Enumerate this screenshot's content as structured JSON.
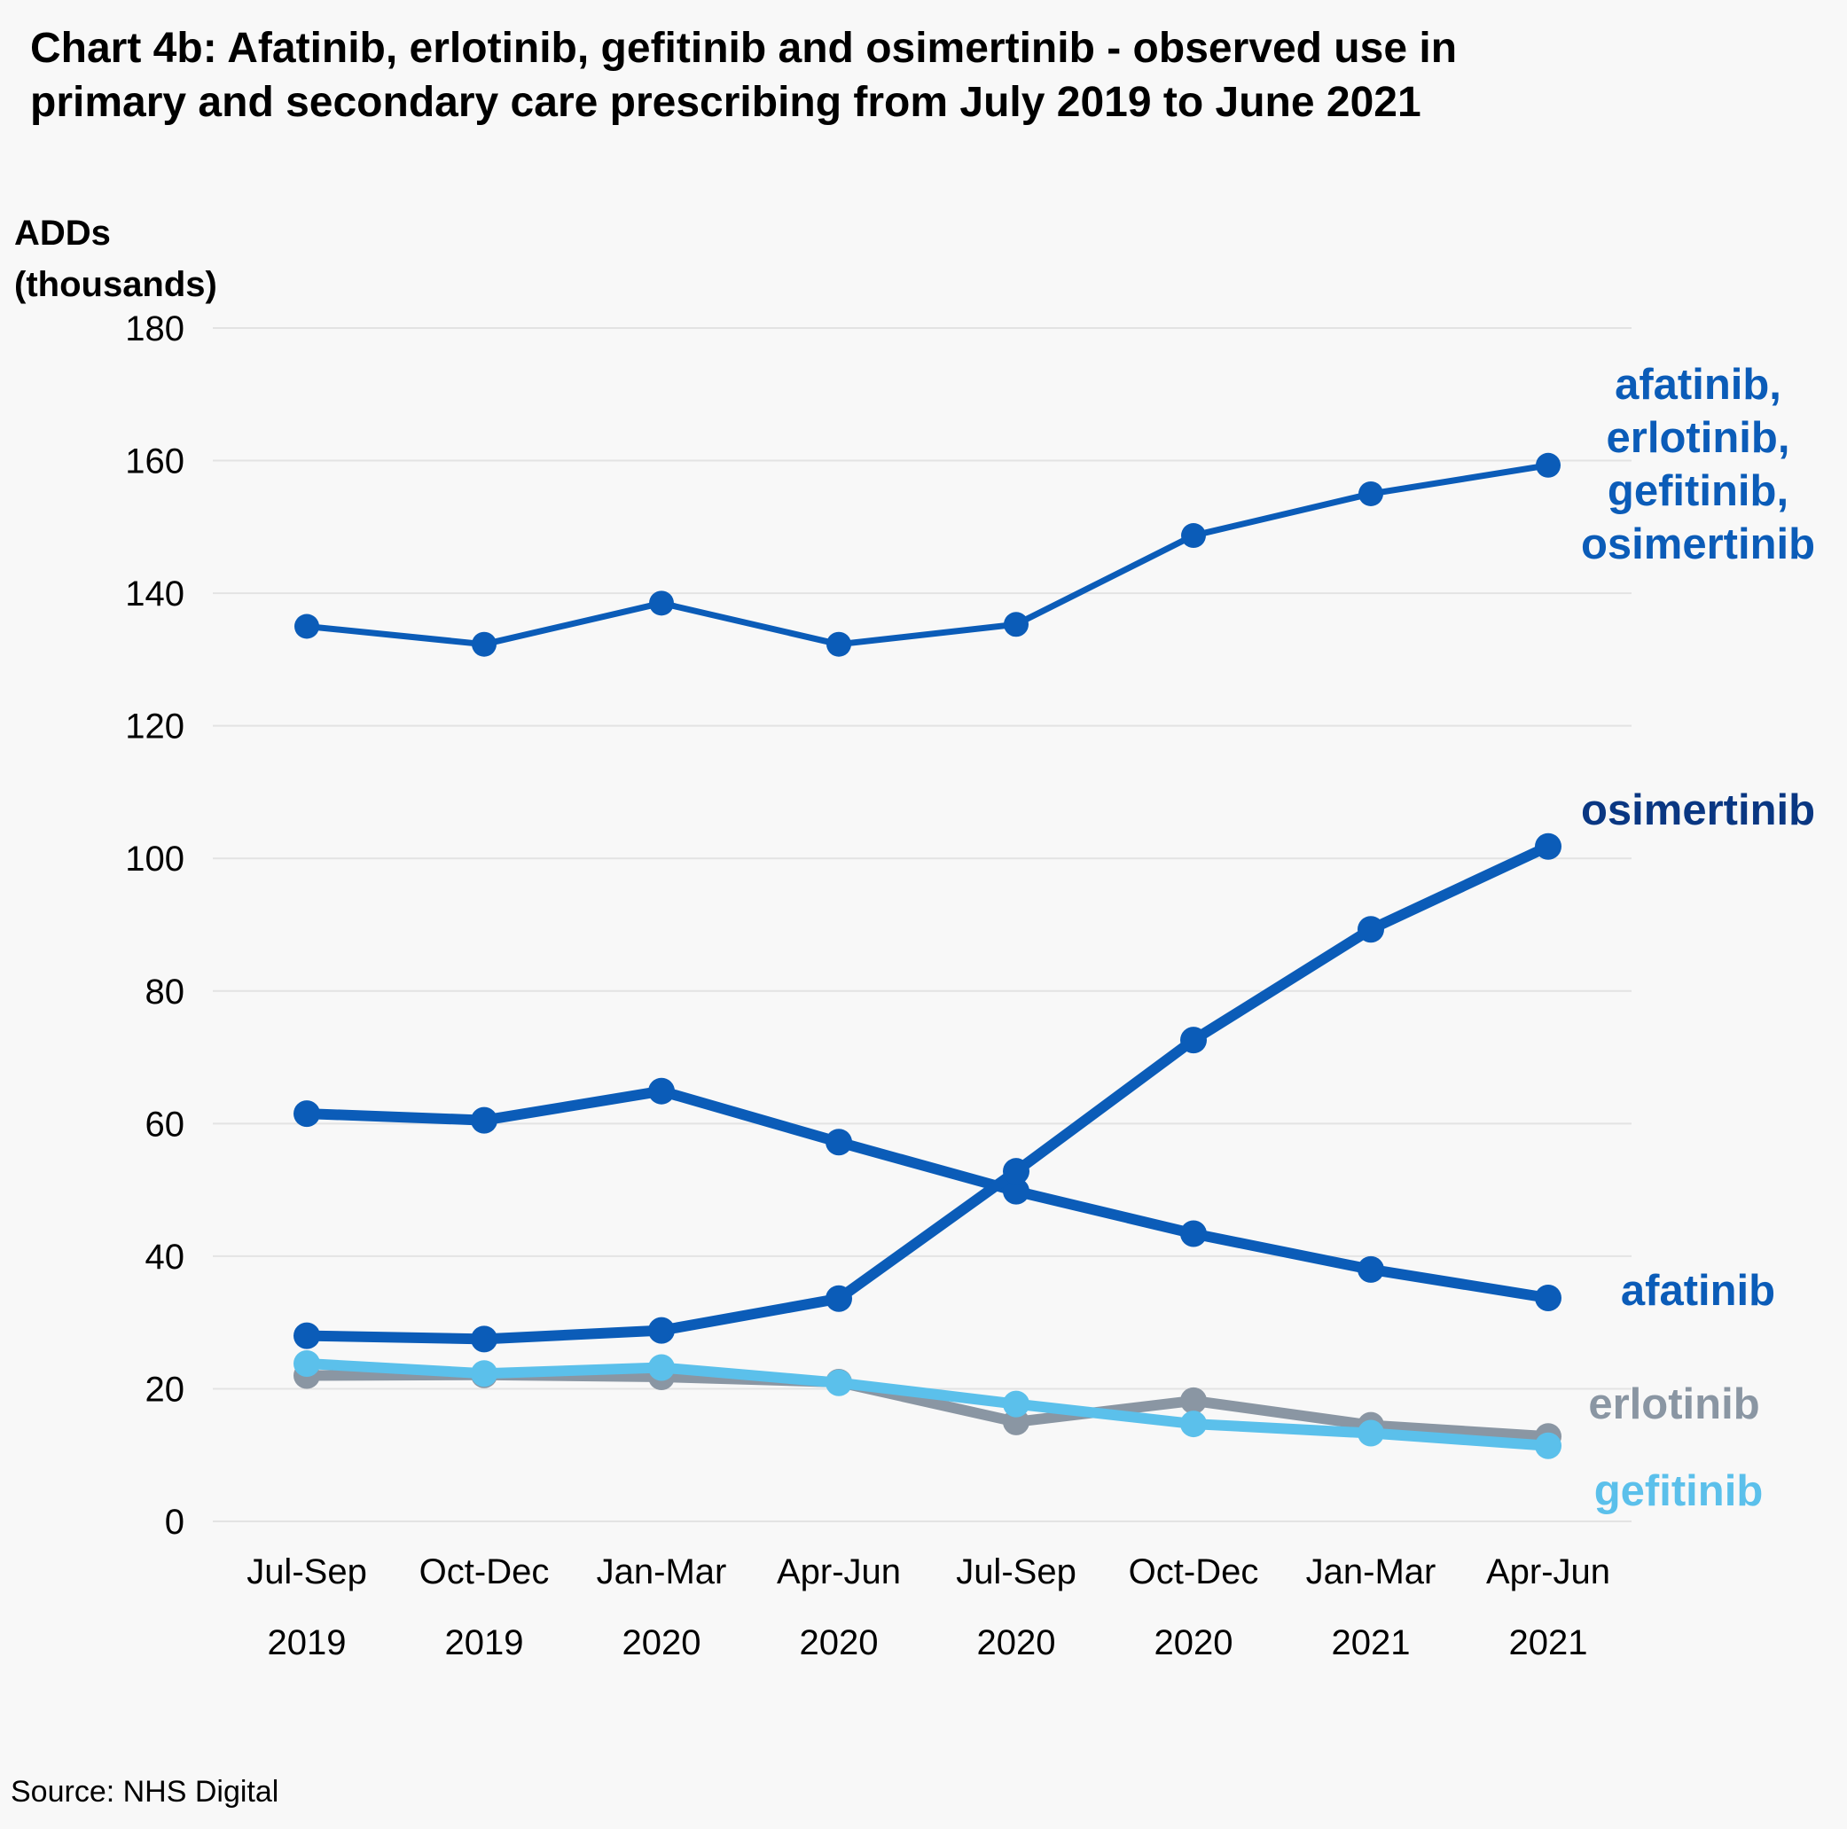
{
  "title_line1": "Chart 4b: Afatinib, erlotinib, gefitinib and osimertinib - observed use in",
  "title_line2": "primary and secondary care prescribing from July 2019 to June 2021",
  "source": "Source: NHS Digital",
  "chart_data": {
    "type": "line",
    "ylabel_line1": "ADDs",
    "ylabel_line2": "(thousands)",
    "ylim": [
      0,
      180
    ],
    "yticks": [
      0,
      20,
      40,
      60,
      80,
      100,
      120,
      140,
      160,
      180
    ],
    "grid": "horizontal",
    "legend": "direct labels at right end of lines",
    "categories": [
      [
        "Jul-Sep",
        "2019"
      ],
      [
        "Oct-Dec",
        "2019"
      ],
      [
        "Jan-Mar",
        "2020"
      ],
      [
        "Apr-Jun",
        "2020"
      ],
      [
        "Jul-Sep",
        "2020"
      ],
      [
        "Oct-Dec",
        "2020"
      ],
      [
        "Jan-Mar",
        "2021"
      ],
      [
        "Apr-Jun",
        "2021"
      ]
    ],
    "series": [
      {
        "name_lines": [
          "afatinib,",
          "erlotinib,",
          "gefitinib,",
          "osimertinib"
        ],
        "color": "#0b5cb8",
        "values": [
          135,
          132.3,
          138.5,
          132.3,
          135.3,
          148.7,
          155,
          159.3
        ]
      },
      {
        "name_lines": [
          "osimertinib"
        ],
        "color": "#0a3782",
        "line_color": "#0b5cb8",
        "values": [
          28,
          27.5,
          28.8,
          33.6,
          52.8,
          72.6,
          89.3,
          101.8
        ]
      },
      {
        "name_lines": [
          "afatinib"
        ],
        "color": "#0b5cb8",
        "values": [
          61.5,
          60.5,
          64.9,
          57.2,
          49.8,
          43.4,
          38,
          33.7
        ]
      },
      {
        "name_lines": [
          "erlotinib"
        ],
        "color": "#8a96a3",
        "values": [
          22,
          22.1,
          21.8,
          21,
          15,
          18.2,
          14.5,
          12.8
        ]
      },
      {
        "name_lines": [
          "gefitinib"
        ],
        "color": "#5bc0eb",
        "values": [
          23.8,
          22.3,
          23.2,
          20.9,
          17.7,
          14.7,
          13.3,
          11.4
        ]
      }
    ]
  }
}
